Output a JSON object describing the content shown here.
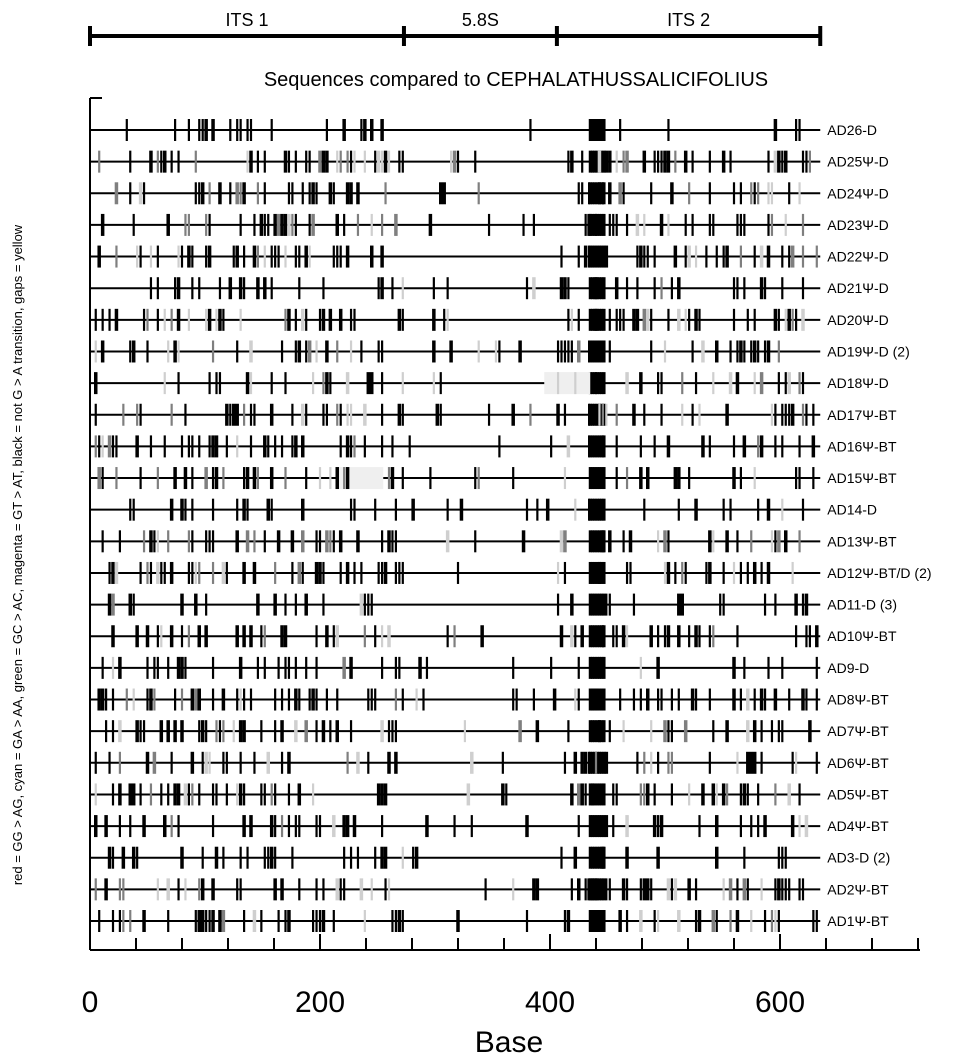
{
  "chart_data": {
    "type": "sequence-difference-plot",
    "title": "Sequences compared to CEPHALATHUSSALICIFOLIUS",
    "xlabel": "Base",
    "ylabel": "red = GG > AG, cyan = GA > AA, green = GC > AC, magenta = GT > AT, black = not G > A transition, gaps = yellow",
    "xlim": [
      0,
      720
    ],
    "sequence_length": 635,
    "x_ticks": [
      0,
      200,
      400,
      600
    ],
    "x_minor_ticks": [
      0,
      40,
      80,
      120,
      160,
      200,
      240,
      280,
      320,
      360,
      400,
      440,
      480,
      520,
      560,
      600,
      640,
      680,
      720
    ],
    "regions": [
      {
        "name": "ITS 1",
        "start": 0,
        "end": 273
      },
      {
        "name": "5.8S",
        "start": 273,
        "end": 406
      },
      {
        "name": "ITS 2",
        "start": 406,
        "end": 635
      }
    ],
    "rows": [
      {
        "label": "AD26-D",
        "density": 0.35,
        "dark": 0.95
      },
      {
        "label": "AD25Ψ-D",
        "density": 0.62,
        "dark": 0.7
      },
      {
        "label": "AD24Ψ-D",
        "density": 0.62,
        "dark": 0.75
      },
      {
        "label": "AD23Ψ-D",
        "density": 0.62,
        "dark": 0.75
      },
      {
        "label": "AD22Ψ-D",
        "density": 0.6,
        "dark": 0.7
      },
      {
        "label": "AD21Ψ-D",
        "density": 0.45,
        "dark": 0.9
      },
      {
        "label": "AD20Ψ-D",
        "density": 0.65,
        "dark": 0.7
      },
      {
        "label": "AD19Ψ-D (2)",
        "density": 0.65,
        "dark": 0.7
      },
      {
        "label": "AD18Ψ-D",
        "density": 0.45,
        "dark": 0.65
      },
      {
        "label": "AD17Ψ-BT",
        "density": 0.6,
        "dark": 0.75
      },
      {
        "label": "AD16Ψ-BT",
        "density": 0.6,
        "dark": 0.75
      },
      {
        "label": "AD15Ψ-BT",
        "density": 0.55,
        "dark": 0.75
      },
      {
        "label": "AD14-D",
        "density": 0.35,
        "dark": 0.95
      },
      {
        "label": "AD13Ψ-BT",
        "density": 0.58,
        "dark": 0.7
      },
      {
        "label": "AD12Ψ-BT/D (2)",
        "density": 0.6,
        "dark": 0.75
      },
      {
        "label": "AD11-D (3)",
        "density": 0.3,
        "dark": 0.95
      },
      {
        "label": "AD10Ψ-BT",
        "density": 0.58,
        "dark": 0.75
      },
      {
        "label": "AD9-D",
        "density": 0.3,
        "dark": 0.95
      },
      {
        "label": "AD8Ψ-BT",
        "density": 0.58,
        "dark": 0.72
      },
      {
        "label": "AD7Ψ-BT",
        "density": 0.62,
        "dark": 0.72
      },
      {
        "label": "AD6Ψ-BT",
        "density": 0.55,
        "dark": 0.72
      },
      {
        "label": "AD5Ψ-BT",
        "density": 0.62,
        "dark": 0.72
      },
      {
        "label": "AD4Ψ-BT",
        "density": 0.45,
        "dark": 0.8
      },
      {
        "label": "AD3-D (2)",
        "density": 0.3,
        "dark": 0.95
      },
      {
        "label": "AD2Ψ-BT",
        "density": 0.6,
        "dark": 0.75
      },
      {
        "label": "AD1Ψ-BT",
        "density": 0.62,
        "dark": 0.75
      }
    ],
    "colors": {
      "black": "#000000",
      "gray": "#7f7f7f",
      "light": "#cfcfcf",
      "gap": "#efefef"
    }
  }
}
